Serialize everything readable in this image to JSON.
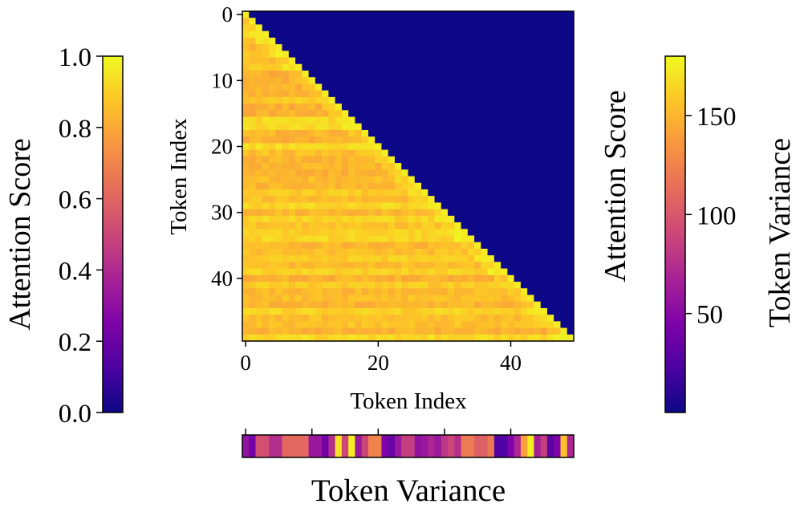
{
  "figure": {
    "left_colorbar": {
      "label": "Attention Score",
      "ticks": [
        "0.0",
        "0.2",
        "0.4",
        "0.6",
        "0.8",
        "1.0"
      ],
      "range": [
        0.0,
        1.0
      ],
      "colormap": "plasma"
    },
    "right_colorbar": {
      "label": "Token Variance",
      "ticks": [
        "50",
        "100",
        "150"
      ],
      "range": [
        0,
        180
      ],
      "colormap": "plasma"
    },
    "middle_label": "Attention Score",
    "heatmap": {
      "xlabel": "Token Index",
      "ylabel": "Token Index",
      "xticks": [
        "0",
        "20",
        "40"
      ],
      "yticks": [
        "0",
        "10",
        "20",
        "30",
        "40"
      ]
    },
    "variance_strip": {
      "label": "Token Variance"
    }
  },
  "chart_data": [
    {
      "type": "heatmap",
      "description_scope": "causal attention map",
      "size": [
        50,
        50
      ],
      "upper_triangle_value": 0.0,
      "lower_triangle_value_range": [
        0.78,
        0.98
      ],
      "diagonal_value": 0.97,
      "xlabel": "Token Index",
      "ylabel": "Token Index",
      "xlim": [
        0,
        49
      ],
      "ylim": [
        49,
        0
      ],
      "xticks": [
        0,
        20,
        40
      ],
      "yticks": [
        0,
        10,
        20,
        30,
        40
      ],
      "colorbar_label": "Attention Score",
      "colorbar_range": [
        0.0,
        1.0
      ]
    },
    {
      "type": "heatmap",
      "label": "Token Variance",
      "size": [
        1,
        50
      ],
      "values": [
        55,
        40,
        95,
        95,
        75,
        75,
        110,
        110,
        110,
        110,
        60,
        60,
        40,
        75,
        170,
        90,
        175,
        60,
        90,
        125,
        125,
        45,
        35,
        60,
        85,
        85,
        55,
        60,
        70,
        60,
        80,
        90,
        75,
        120,
        120,
        105,
        105,
        120,
        25,
        25,
        45,
        70,
        140,
        175,
        65,
        85,
        30,
        45,
        155,
        70
      ],
      "colorbar_label": "Token Variance",
      "colorbar_range": [
        0,
        180
      ]
    }
  ]
}
